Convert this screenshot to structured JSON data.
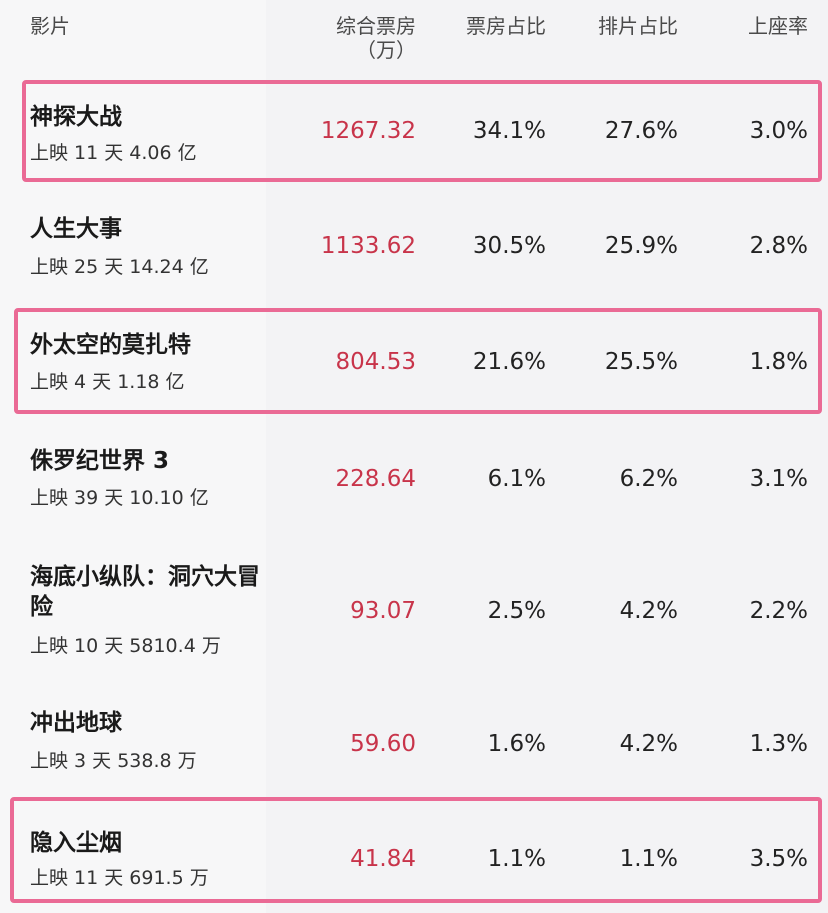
{
  "header": {
    "film": "影片",
    "box_office": "综合票房",
    "box_office_unit": "（万）",
    "box_share": "票房占比",
    "schedule_share": "排片占比",
    "seat_rate": "上座率"
  },
  "rows": [
    {
      "name": "神探大战",
      "sub": "上映 11 天 4.06 亿",
      "box": "1267.32",
      "share": "34.1%",
      "sched": "27.6%",
      "seat": "3.0%",
      "highlighted": true
    },
    {
      "name": "人生大事",
      "sub": "上映 25 天 14.24 亿",
      "box": "1133.62",
      "share": "30.5%",
      "sched": "25.9%",
      "seat": "2.8%",
      "highlighted": false
    },
    {
      "name": "外太空的莫扎特",
      "sub": "上映 4 天 1.18 亿",
      "box": "804.53",
      "share": "21.6%",
      "sched": "25.5%",
      "seat": "1.8%",
      "highlighted": true
    },
    {
      "name": "侏罗纪世界 3",
      "sub": "上映 39 天 10.10 亿",
      "box": "228.64",
      "share": "6.1%",
      "sched": "6.2%",
      "seat": "3.1%",
      "highlighted": false
    },
    {
      "name": "海底小纵队：洞穴大冒险",
      "sub": "上映 10 天 5810.4 万",
      "box": "93.07",
      "share": "2.5%",
      "sched": "4.2%",
      "seat": "2.2%",
      "highlighted": false
    },
    {
      "name": "冲出地球",
      "sub": "上映 3 天 538.8 万",
      "box": "59.60",
      "share": "1.6%",
      "sched": "4.2%",
      "seat": "1.3%",
      "highlighted": false
    },
    {
      "name": "隐入尘烟",
      "sub": "上映 11 天 691.5 万",
      "box": "41.84",
      "share": "1.1%",
      "sched": "1.1%",
      "seat": "3.5%",
      "highlighted": true
    }
  ],
  "colors": {
    "highlight_border": "#ea6a95",
    "box_office_text": "#c8344a"
  }
}
